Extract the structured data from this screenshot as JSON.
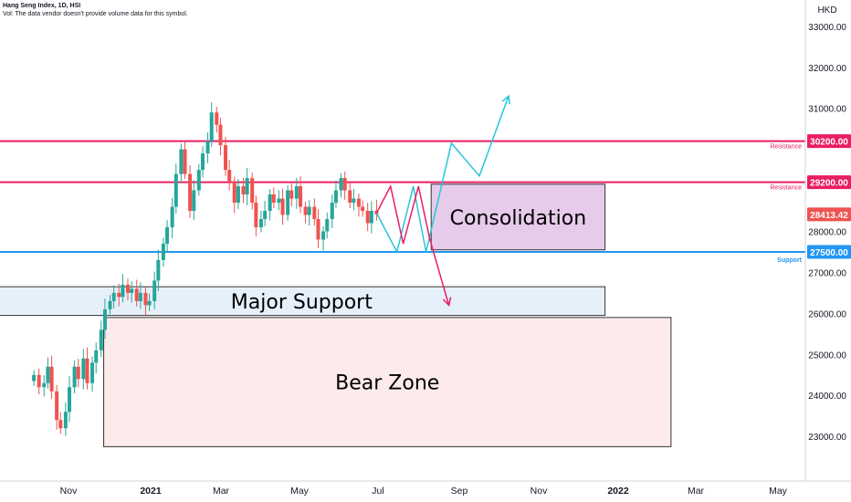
{
  "header": {
    "title": "Hang Seng Index, 1D, HSI",
    "subtitle": "Vol: The data vendor doesn't provide volume data for this symbol."
  },
  "chart_data": {
    "type": "candlestick",
    "currency": "HKD",
    "ylim": [
      22200,
      33500
    ],
    "y_ticks": [
      "33000.00",
      "32000.00",
      "31000.00",
      "28000.00",
      "27000.00",
      "26000.00",
      "25000.00",
      "24000.00",
      "23000.00"
    ],
    "x_ticks": [
      "Nov",
      "2021",
      "Mar",
      "May",
      "Jul",
      "Sep",
      "Nov",
      "2022",
      "Mar",
      "May"
    ],
    "colors": {
      "up": "#26a69a",
      "down": "#ef5350",
      "resistance": "#e91e63",
      "support": "#2196f3",
      "teal": "#26c6da"
    },
    "series": [
      {
        "date": "2020-10-01",
        "close": 24500
      },
      {
        "date": "2020-10-05",
        "close": 24200
      },
      {
        "date": "2020-10-09",
        "close": 24300
      },
      {
        "date": "2020-10-12",
        "close": 24700
      },
      {
        "date": "2020-10-15",
        "close": 24100
      },
      {
        "date": "2020-10-19",
        "close": 23400
      },
      {
        "date": "2020-10-22",
        "close": 23200
      },
      {
        "date": "2020-10-26",
        "close": 23600
      },
      {
        "date": "2020-10-29",
        "close": 24200
      },
      {
        "date": "2020-11-02",
        "close": 24700
      },
      {
        "date": "2020-11-05",
        "close": 24400
      },
      {
        "date": "2020-11-09",
        "close": 24900
      },
      {
        "date": "2020-11-12",
        "close": 24300
      },
      {
        "date": "2020-11-16",
        "close": 24800
      },
      {
        "date": "2020-11-19",
        "close": 25100
      },
      {
        "date": "2020-11-23",
        "close": 25600
      },
      {
        "date": "2020-11-26",
        "close": 26100
      },
      {
        "date": "2020-11-30",
        "close": 26300
      },
      {
        "date": "2020-12-03",
        "close": 26500
      },
      {
        "date": "2020-12-07",
        "close": 26400
      },
      {
        "date": "2020-12-10",
        "close": 26700
      },
      {
        "date": "2020-12-14",
        "close": 26500
      },
      {
        "date": "2020-12-17",
        "close": 26600
      },
      {
        "date": "2020-12-21",
        "close": 26300
      },
      {
        "date": "2020-12-24",
        "close": 26500
      },
      {
        "date": "2020-12-28",
        "close": 26200
      },
      {
        "date": "2020-12-31",
        "close": 26300
      },
      {
        "date": "2021-01-04",
        "close": 26800
      },
      {
        "date": "2021-01-07",
        "close": 27300
      },
      {
        "date": "2021-01-11",
        "close": 27700
      },
      {
        "date": "2021-01-14",
        "close": 28100
      },
      {
        "date": "2021-01-18",
        "close": 28600
      },
      {
        "date": "2021-01-21",
        "close": 29400
      },
      {
        "date": "2021-01-25",
        "close": 30000
      },
      {
        "date": "2021-01-28",
        "close": 29400
      },
      {
        "date": "2021-02-01",
        "close": 28500
      },
      {
        "date": "2021-02-04",
        "close": 29000
      },
      {
        "date": "2021-02-08",
        "close": 29500
      },
      {
        "date": "2021-02-11",
        "close": 29900
      },
      {
        "date": "2021-02-15",
        "close": 30200
      },
      {
        "date": "2021-02-18",
        "close": 30900
      },
      {
        "date": "2021-02-22",
        "close": 30600
      },
      {
        "date": "2021-02-25",
        "close": 30100
      },
      {
        "date": "2021-03-01",
        "close": 29500
      },
      {
        "date": "2021-03-04",
        "close": 29200
      },
      {
        "date": "2021-03-08",
        "close": 28700
      },
      {
        "date": "2021-03-11",
        "close": 29100
      },
      {
        "date": "2021-03-15",
        "close": 28900
      },
      {
        "date": "2021-03-18",
        "close": 29300
      },
      {
        "date": "2021-03-22",
        "close": 28700
      },
      {
        "date": "2021-03-25",
        "close": 28100
      },
      {
        "date": "2021-03-29",
        "close": 28300
      },
      {
        "date": "2021-04-01",
        "close": 28500
      },
      {
        "date": "2021-04-05",
        "close": 28900
      },
      {
        "date": "2021-04-08",
        "close": 28700
      },
      {
        "date": "2021-04-12",
        "close": 28800
      },
      {
        "date": "2021-04-15",
        "close": 28400
      },
      {
        "date": "2021-04-19",
        "close": 29000
      },
      {
        "date": "2021-04-22",
        "close": 28800
      },
      {
        "date": "2021-04-26",
        "close": 29100
      },
      {
        "date": "2021-04-29",
        "close": 28600
      },
      {
        "date": "2021-05-03",
        "close": 28400
      },
      {
        "date": "2021-05-06",
        "close": 28600
      },
      {
        "date": "2021-05-10",
        "close": 28300
      },
      {
        "date": "2021-05-13",
        "close": 27800
      },
      {
        "date": "2021-05-17",
        "close": 28000
      },
      {
        "date": "2021-05-20",
        "close": 28300
      },
      {
        "date": "2021-05-24",
        "close": 28700
      },
      {
        "date": "2021-05-27",
        "close": 29000
      },
      {
        "date": "2021-05-31",
        "close": 29300
      },
      {
        "date": "2021-06-03",
        "close": 29000
      },
      {
        "date": "2021-06-07",
        "close": 28700
      },
      {
        "date": "2021-06-10",
        "close": 28800
      },
      {
        "date": "2021-06-14",
        "close": 28600
      },
      {
        "date": "2021-06-17",
        "close": 28500
      },
      {
        "date": "2021-06-21",
        "close": 28200
      },
      {
        "date": "2021-06-24",
        "close": 28500
      },
      {
        "date": "2021-06-28",
        "close": 28413
      }
    ],
    "levels": [
      {
        "name": "Resistance",
        "price": 30200,
        "label": "30200.00"
      },
      {
        "name": "Resistance",
        "price": 29200,
        "label": "29200.00"
      },
      {
        "name": "Support",
        "price": 27500,
        "label": "27500.00"
      }
    ],
    "last_price": {
      "label": "28413.42",
      "price": 28413.42
    },
    "zones": [
      {
        "name": "Consolidation",
        "from": "2021-08-10",
        "to": "2021-12-25",
        "low": 27550,
        "high": 29150
      },
      {
        "name": "Major Support",
        "from": "2020-09-01",
        "to": "2021-12-25",
        "low": 25950,
        "high": 26650
      },
      {
        "name": "Bear Zone",
        "from": "2020-11-25",
        "to": "2022-02-15",
        "low": 22750,
        "high": 25900
      }
    ],
    "projections": {
      "red": [
        {
          "date": "2021-06-28",
          "price": 28450
        },
        {
          "date": "2021-07-09",
          "price": 29100
        },
        {
          "date": "2021-07-19",
          "price": 27700
        },
        {
          "date": "2021-07-31",
          "price": 29100
        },
        {
          "date": "2021-08-09",
          "price": 27800
        },
        {
          "date": "2021-08-24",
          "price": 26200
        }
      ],
      "teal": [
        {
          "date": "2021-06-28",
          "price": 28450
        },
        {
          "date": "2021-07-14",
          "price": 27500
        },
        {
          "date": "2021-07-27",
          "price": 29100
        },
        {
          "date": "2021-08-06",
          "price": 27500
        },
        {
          "date": "2021-08-26",
          "price": 30150
        },
        {
          "date": "2021-09-17",
          "price": 29350
        },
        {
          "date": "2021-10-10",
          "price": 31300
        }
      ]
    }
  }
}
